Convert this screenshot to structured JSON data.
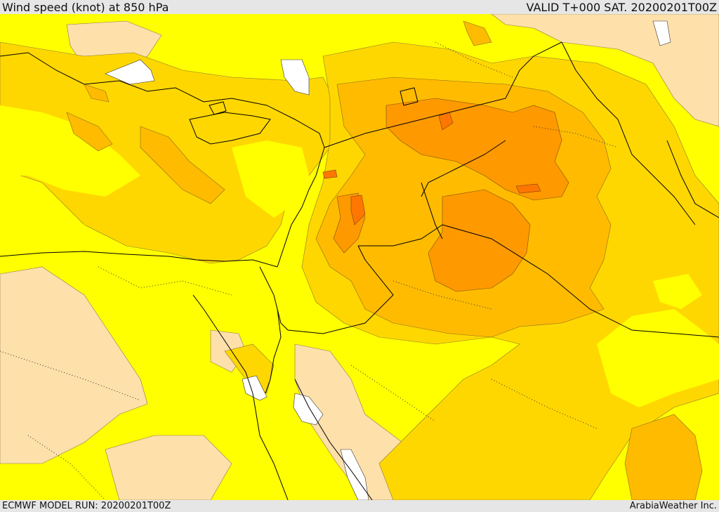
{
  "header": {
    "title": "Wind speed (knot) at 850 hPa",
    "valid": "VALID T+000 SAT. 20200201T00Z"
  },
  "footer": {
    "model_run": "ECMWF MODEL RUN: 20200201T00Z",
    "credit": "ArabiaWeather Inc."
  },
  "map": {
    "colors": {
      "sea": "#ffffff",
      "calm": "#fee0aa",
      "light": "#ffff00",
      "moderate": "#ffd700",
      "fresh": "#ffbb00",
      "strong": "#ff9900",
      "very_strong": "#ff7700",
      "border": "#000000"
    }
  }
}
